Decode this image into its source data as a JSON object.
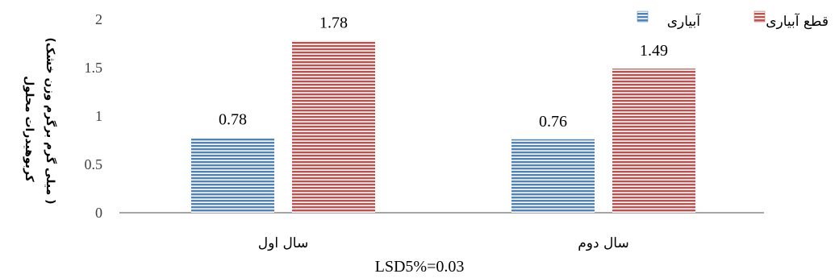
{
  "chart_data": {
    "type": "bar",
    "categories": [
      "سال اول",
      "سال دوم"
    ],
    "series": [
      {
        "name": "آبیاری",
        "values": [
          0.78,
          0.76
        ],
        "color": "#4f81bd",
        "pattern": "horizontal-stripes"
      },
      {
        "name": "قطع آبیاری",
        "values": [
          1.78,
          1.49
        ],
        "color": "#c0504d",
        "pattern": "horizontal-stripes"
      }
    ],
    "data_labels": [
      [
        "0.78",
        "0.76"
      ],
      [
        "1.78",
        "1.49"
      ]
    ],
    "ylim": [
      0,
      2
    ],
    "yticks": [
      "0",
      "0.5",
      "1",
      "1.5",
      "2"
    ],
    "ylabel_line1": "کربوهیدرات محلول",
    "ylabel_line2": "(میلی گرم برگرم وزن خشک )",
    "legend_position": "top-right",
    "grid": false,
    "note": "LSD5%=0.03"
  }
}
